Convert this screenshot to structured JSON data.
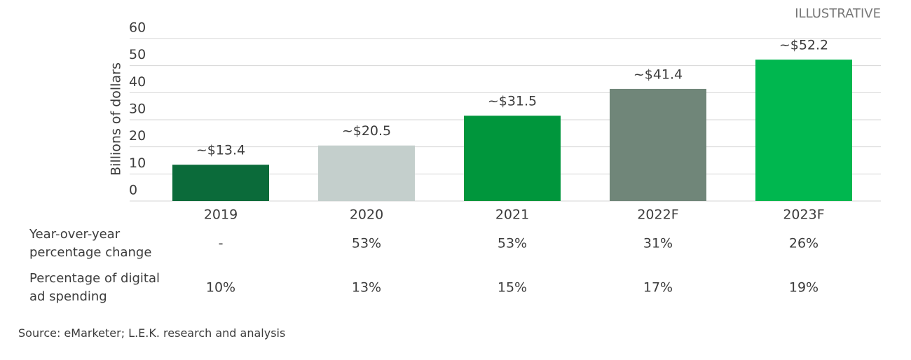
{
  "chart_data": {
    "type": "bar",
    "annotation": "ILLUSTRATIVE",
    "ylabel": "Billions of dollars",
    "categories": [
      "2019",
      "2020",
      "2021",
      "2022F",
      "2023F"
    ],
    "values": [
      13.4,
      20.5,
      31.5,
      41.4,
      52.2
    ],
    "value_labels": [
      "~$13.4",
      "~$20.5",
      "~$31.5",
      "~$41.4",
      "~$52.2"
    ],
    "colors": [
      "#0b6b3a",
      "#c4cfcc",
      "#00963c",
      "#708679",
      "#00b74f"
    ],
    "ylim": [
      0,
      60
    ],
    "yticks": [
      0,
      10,
      20,
      30,
      40,
      50,
      60
    ],
    "grid": true,
    "table": {
      "rows": [
        {
          "label": "Year-over-year percentage change",
          "cells": [
            "-",
            "53%",
            "53%",
            "31%",
            "26%"
          ]
        },
        {
          "label": "Percentage of digital ad spending",
          "cells": [
            "10%",
            "13%",
            "15%",
            "17%",
            "19%"
          ]
        }
      ]
    },
    "source": "Source: eMarketer; L.E.K. research and analysis"
  }
}
